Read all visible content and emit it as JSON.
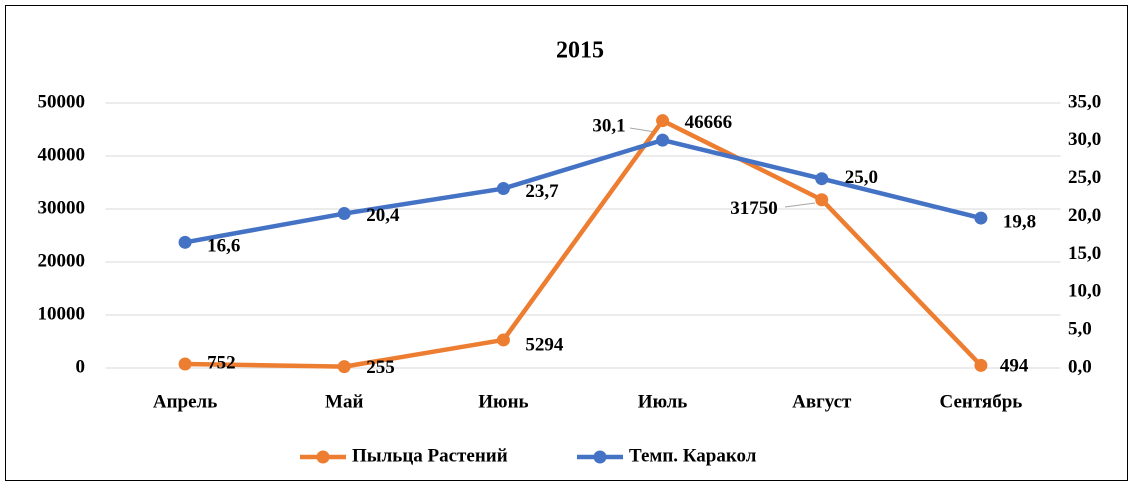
{
  "chart_data": {
    "type": "line",
    "title": "2015",
    "categories": [
      "Апрель",
      "Май",
      "Июнь",
      "Июль",
      "Август",
      "Сентябрь"
    ],
    "series": [
      {
        "name": "Пыльца Растений",
        "color": "#ed7d31",
        "values": [
          752,
          255,
          5294,
          46666,
          31750,
          494
        ]
      },
      {
        "name": "Темп. Каракол",
        "color": "#4472c4",
        "axis": "y2",
        "values": [
          16.6,
          20.4,
          23.7,
          30.1,
          25.0,
          19.8
        ],
        "value_labels": [
          "16,6",
          "20,4",
          "23,7",
          "30,1",
          "25,0",
          "19,8"
        ]
      }
    ],
    "ylim": [
      0,
      50000
    ],
    "yticks": [
      0,
      10000,
      20000,
      30000,
      40000,
      50000
    ],
    "y2lim": [
      0,
      35
    ],
    "y2ticks": [
      {
        "value": 0,
        "label": "0,0"
      },
      {
        "value": 5,
        "label": "5,0"
      },
      {
        "value": 10,
        "label": "10,0"
      },
      {
        "value": 15,
        "label": "15,0"
      },
      {
        "value": 20,
        "label": "20,0"
      },
      {
        "value": 25,
        "label": "25,0"
      },
      {
        "value": 30,
        "label": "30,0"
      },
      {
        "value": 35,
        "label": "35,0"
      }
    ],
    "grid": true,
    "legend": "bottom"
  }
}
